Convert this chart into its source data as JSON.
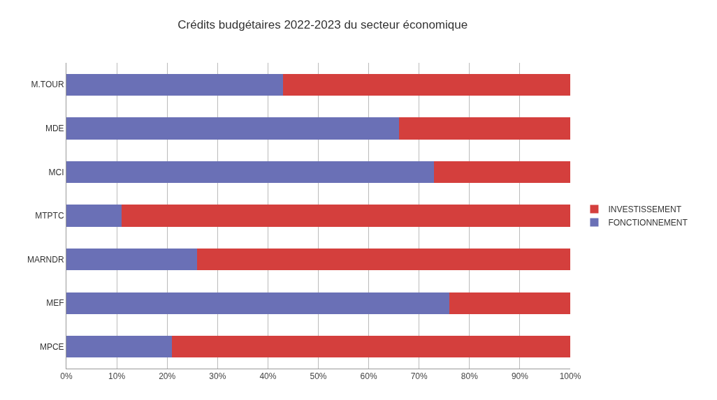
{
  "chart_data": {
    "type": "bar",
    "orientation": "horizontal",
    "stacked": true,
    "title": "Crédits budgétaires 2022-2023 du secteur économique",
    "categories": [
      "M.TOUR",
      "MDE",
      "MCI",
      "MTPTC",
      "MARNDR",
      "MEF",
      "MPCE"
    ],
    "series": [
      {
        "name": "FONCTIONNEMENT",
        "color": "#6a70b6",
        "values": [
          43,
          66,
          73,
          11,
          26,
          76,
          21
        ]
      },
      {
        "name": "INVESTISSEMENT",
        "color": "#d43f3d",
        "values": [
          57,
          34,
          27,
          89,
          74,
          24,
          79
        ]
      }
    ],
    "xlim": [
      0,
      100
    ],
    "xticks": [
      {
        "value": 0,
        "label": "0%"
      },
      {
        "value": 10,
        "label": "10%"
      },
      {
        "value": 20,
        "label": "20%"
      },
      {
        "value": 30,
        "label": "30%"
      },
      {
        "value": 40,
        "label": "40%"
      },
      {
        "value": 50,
        "label": "50%"
      },
      {
        "value": 60,
        "label": "60%"
      },
      {
        "value": 70,
        "label": "70%"
      },
      {
        "value": 80,
        "label": "80%"
      },
      {
        "value": 90,
        "label": "90%"
      },
      {
        "value": 100,
        "label": "100%"
      }
    ],
    "grid": "x",
    "legend": "right"
  }
}
